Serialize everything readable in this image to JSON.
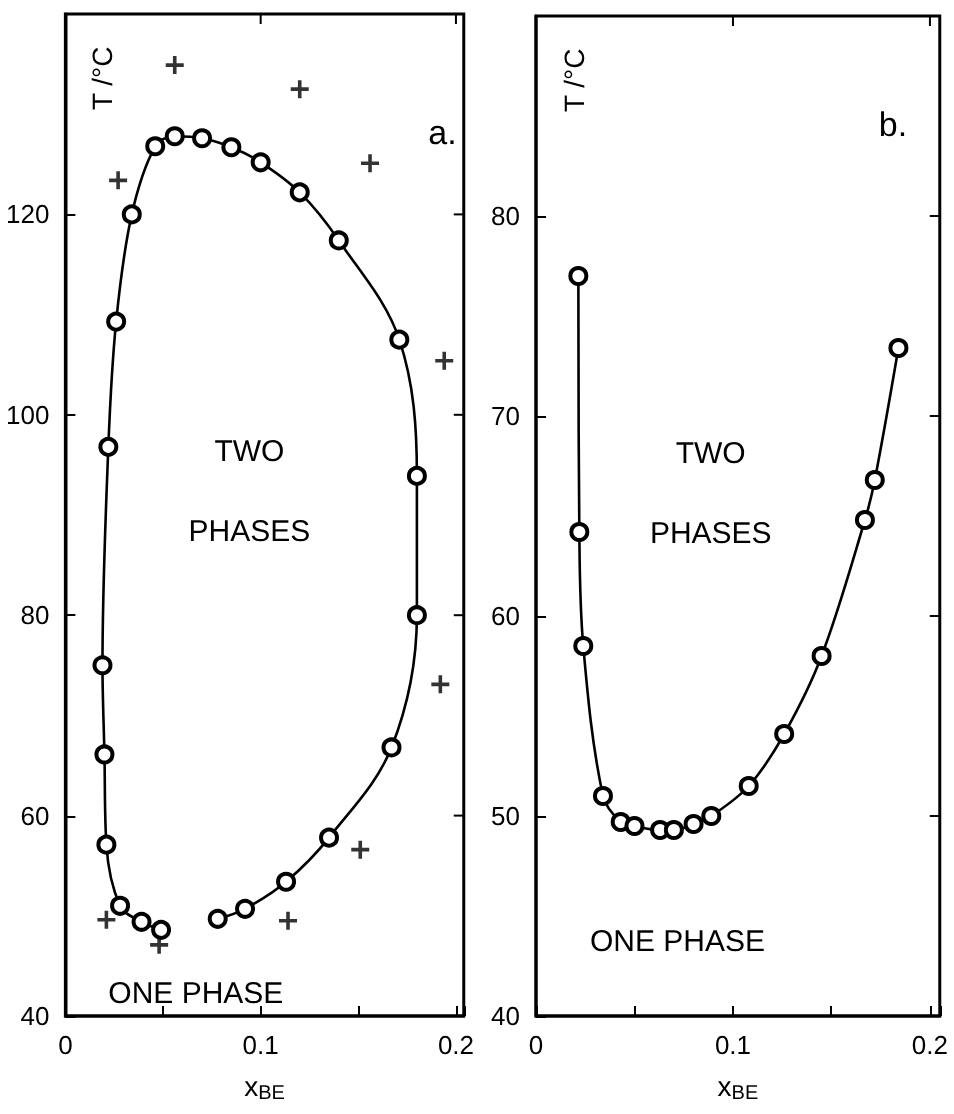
{
  "chart_data": [
    {
      "type": "line",
      "title": "a.",
      "xlabel": "x$_{BE}$",
      "ylabel": "T /°C",
      "xlim": [
        0,
        0.204
      ],
      "xticks": [
        0,
        0.1,
        0.2
      ],
      "ylim": [
        40,
        140
      ],
      "yticks": [
        40,
        60,
        80,
        100,
        120
      ],
      "grid": false,
      "annotations": [
        "TWO PHASES",
        "ONE PHASE"
      ],
      "series": [
        {
          "color": "#000000",
          "marker": "circle",
          "line_style": "solid",
          "x": [
            0.049,
            0.039,
            0.028,
            0.021,
            0.02,
            0.019,
            0.022,
            0.026,
            0.034,
            0.046,
            0.056,
            0.07,
            0.085,
            0.1,
            0.12,
            0.14,
            0.171,
            0.18,
            0.18,
            0.167,
            0.135,
            0.113,
            0.092,
            0.078
          ],
          "values": [
            48.6,
            49.4,
            51.0,
            57.1,
            66.1,
            75.0,
            96.8,
            109.3,
            120.0,
            126.8,
            127.8,
            127.6,
            126.7,
            125.2,
            122.2,
            117.4,
            107.5,
            93.9,
            80.0,
            66.8,
            57.8,
            53.4,
            50.7,
            49.7
          ]
        },
        {
          "type": "scatter",
          "color": "#000000",
          "marker": "cross",
          "x": [
            0.056,
            0.12,
            0.027,
            0.156,
            0.194,
            0.192,
            0.151,
            0.114,
            0.048,
            0.021
          ],
          "values": [
            134.9,
            132.5,
            123.4,
            125.1,
            105.4,
            73.1,
            56.6,
            49.5,
            47.1,
            49.6
          ]
        }
      ]
    },
    {
      "type": "line",
      "title": "b.",
      "xlabel": "x$_{BE}$",
      "ylabel": "T /°C",
      "xlim": [
        0,
        0.205
      ],
      "xticks": [
        0,
        0.1,
        0.2
      ],
      "ylim": [
        40,
        90
      ],
      "yticks": [
        40,
        50,
        60,
        70,
        80
      ],
      "grid": false,
      "annotations": [
        "TWO PHASES",
        "ONE PHASE"
      ],
      "series": [
        {
          "color": "#000000",
          "marker": "circle",
          "line_style": "solid",
          "x": [
            0.0215,
            0.022,
            0.024,
            0.034,
            0.043,
            0.05,
            0.063,
            0.07,
            0.08,
            0.089,
            0.108,
            0.126,
            0.145,
            0.167,
            0.172,
            0.184
          ],
          "values": [
            77.0,
            64.2,
            58.5,
            51.0,
            49.7,
            49.5,
            49.3,
            49.3,
            49.6,
            50.0,
            51.5,
            54.1,
            58.0,
            64.8,
            66.8,
            73.4
          ]
        }
      ]
    }
  ]
}
